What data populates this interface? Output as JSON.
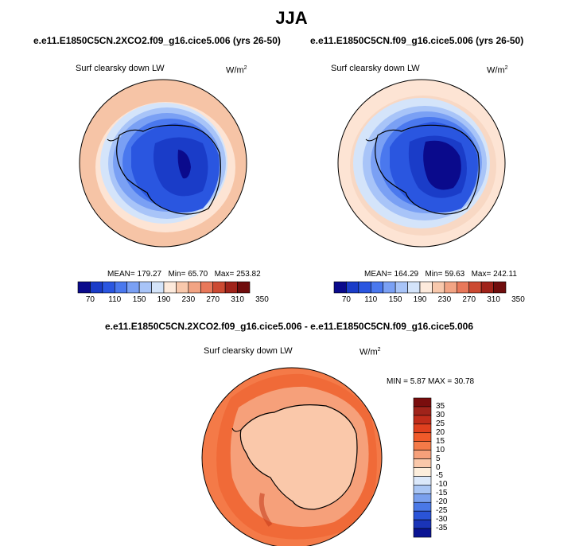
{
  "title": "JJA",
  "panels": [
    {
      "case": "e.e11.E1850C5CN.2XCO2.f09_g16.cice5.006 (yrs 26-50)",
      "variable": "Surf clearsky down LW",
      "units": "W/m",
      "units_sup": "2",
      "mean_label": "MEAN=",
      "mean": "179.27",
      "min_label": "Min=",
      "min": "65.70",
      "max_label": "Max=",
      "max": "253.82"
    },
    {
      "case": "e.e11.E1850C5CN.f09_g16.cice5.006 (yrs 26-50)",
      "variable": "Surf clearsky down LW",
      "units": "W/m",
      "units_sup": "2",
      "mean_label": "MEAN=",
      "mean": "164.29",
      "min_label": "Min=",
      "min": "59.63",
      "max_label": "Max=",
      "max": "242.11"
    }
  ],
  "abs_colorbar": {
    "ticks": [
      "70",
      "110",
      "150",
      "190",
      "230",
      "270",
      "310",
      "350"
    ],
    "colors": [
      "#0a0a8c",
      "#1a3cc8",
      "#2a56e0",
      "#4a78ee",
      "#7aa0f4",
      "#a8c4f8",
      "#d4e4fa",
      "#fdeadc",
      "#f8c8ac",
      "#f2a484",
      "#e8785a",
      "#cc4a32",
      "#a0231a",
      "#700d0d"
    ]
  },
  "diff": {
    "title": "e.e11.E1850C5CN.2XCO2.f09_g16.cice5.006 - e.e11.E1850C5CN.f09_g16.cice5.006",
    "variable": "Surf clearsky down LW",
    "units": "W/m",
    "units_sup": "2",
    "min_label": "MIN =",
    "min": "5.87",
    "max_label": "MAX =",
    "max": "30.78",
    "colorbar_ticks": [
      "35",
      "30",
      "25",
      "20",
      "15",
      "10",
      "5",
      "0",
      "-5",
      "-10",
      "-15",
      "-20",
      "-25",
      "-30",
      "-35"
    ],
    "colorbar_colors": [
      "#a0231a",
      "#c02c1a",
      "#e0401e",
      "#f05a2a",
      "#f47a48",
      "#f6a07a",
      "#fac8aa",
      "#fdeedc",
      "#dbe8fa",
      "#aac6f4",
      "#7aa0ee",
      "#4a78e6",
      "#2a54d8",
      "#1a34b8",
      "#0a1494"
    ]
  }
}
